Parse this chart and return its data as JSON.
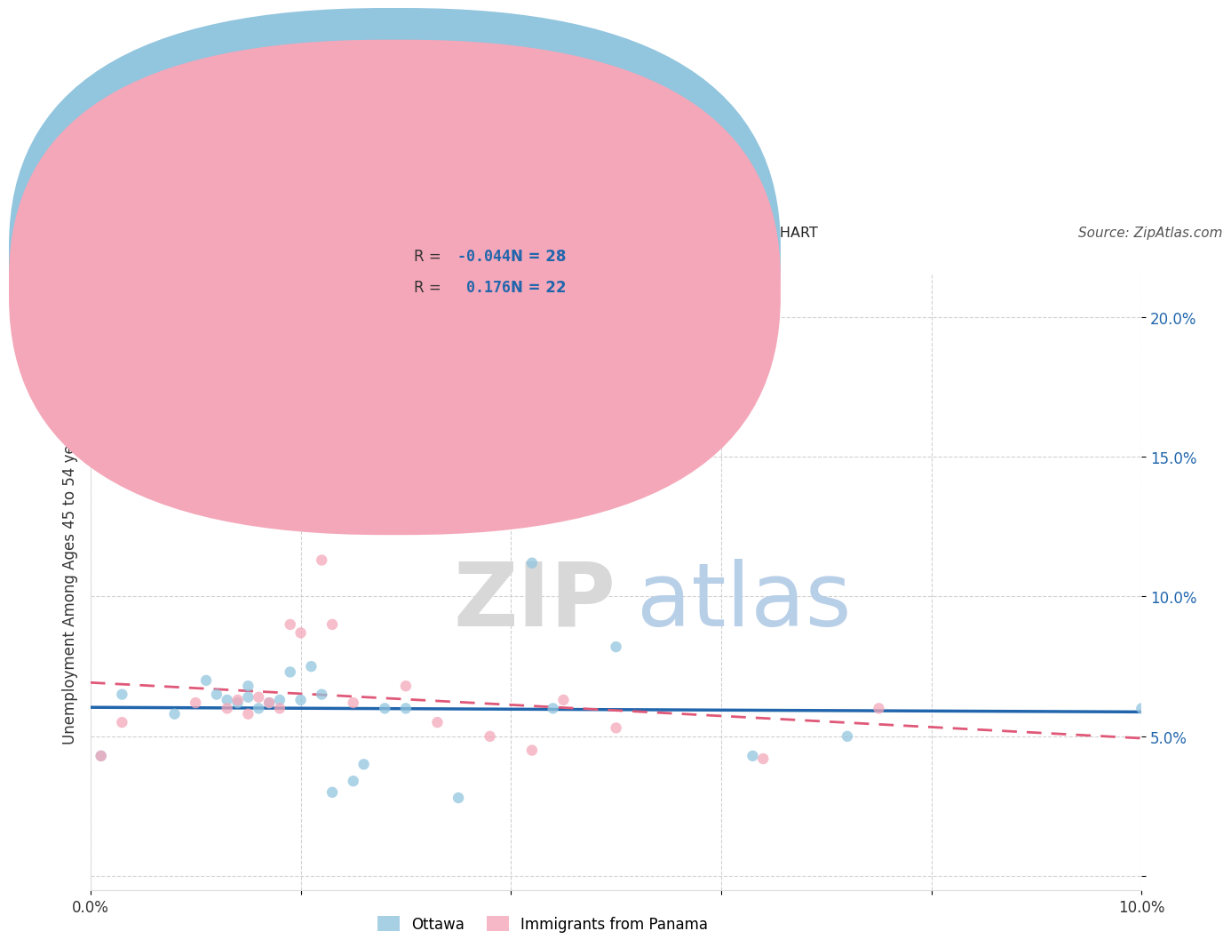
{
  "title": "OTTAWA VS IMMIGRANTS FROM PANAMA UNEMPLOYMENT AMONG AGES 45 TO 54 YEARS CORRELATION CHART",
  "source": "Source: ZipAtlas.com",
  "ylabel": "Unemployment Among Ages 45 to 54 years",
  "xlim": [
    0.0,
    0.1
  ],
  "ylim": [
    -0.005,
    0.215
  ],
  "ottawa_color": "#92c5de",
  "panama_color": "#f4a7b9",
  "ottawa_line_color": "#2166ac",
  "panama_line_color": "#e05878",
  "ottawa_R": -0.044,
  "ottawa_N": 28,
  "panama_R": 0.176,
  "panama_N": 22,
  "ottawa_x": [
    0.001,
    0.003,
    0.008,
    0.011,
    0.012,
    0.013,
    0.014,
    0.015,
    0.015,
    0.016,
    0.017,
    0.018,
    0.019,
    0.02,
    0.021,
    0.022,
    0.023,
    0.025,
    0.026,
    0.028,
    0.03,
    0.035,
    0.042,
    0.044,
    0.05,
    0.063,
    0.072,
    0.1
  ],
  "ottawa_y": [
    0.043,
    0.065,
    0.058,
    0.07,
    0.065,
    0.063,
    0.062,
    0.064,
    0.068,
    0.06,
    0.062,
    0.063,
    0.073,
    0.063,
    0.075,
    0.065,
    0.03,
    0.034,
    0.04,
    0.06,
    0.06,
    0.028,
    0.112,
    0.06,
    0.082,
    0.043,
    0.05,
    0.06
  ],
  "panama_x": [
    0.001,
    0.003,
    0.01,
    0.013,
    0.014,
    0.015,
    0.016,
    0.017,
    0.018,
    0.019,
    0.02,
    0.022,
    0.023,
    0.025,
    0.03,
    0.033,
    0.038,
    0.042,
    0.045,
    0.05,
    0.064,
    0.075
  ],
  "panama_y": [
    0.043,
    0.055,
    0.062,
    0.06,
    0.063,
    0.058,
    0.064,
    0.062,
    0.06,
    0.09,
    0.087,
    0.113,
    0.09,
    0.062,
    0.068,
    0.055,
    0.05,
    0.045,
    0.063,
    0.053,
    0.042,
    0.06
  ],
  "bg_color": "#ffffff",
  "grid_color": "#cccccc"
}
